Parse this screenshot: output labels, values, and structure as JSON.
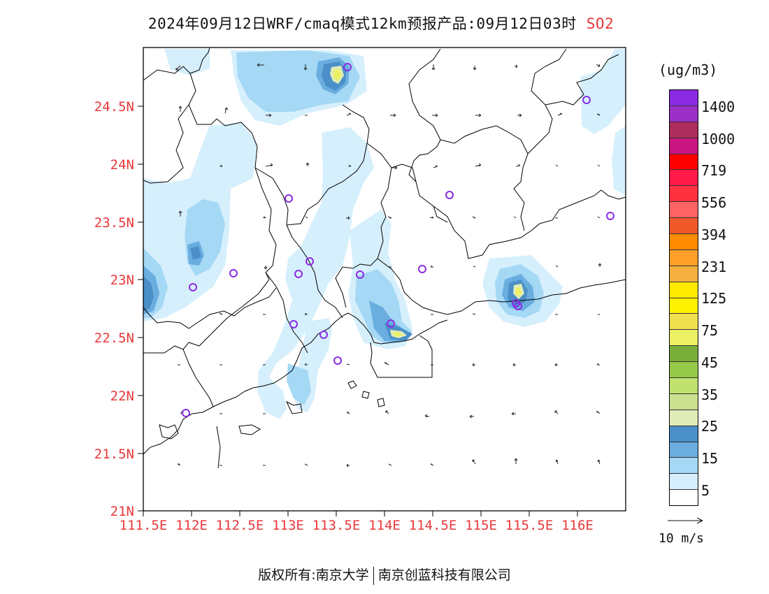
{
  "title": {
    "main": "2024年09月12日WRF/cmaq模式12km预报产品:09月12日03时",
    "variable": "SO2"
  },
  "map": {
    "x_ticks": [
      "111.5E",
      "112E",
      "112.5E",
      "113E",
      "113.5E",
      "114E",
      "114.5E",
      "115E",
      "115.5E",
      "116E"
    ],
    "y_ticks": [
      "21N",
      "21.5N",
      "22N",
      "22.5N",
      "23N",
      "23.5N",
      "24N",
      "24.5N"
    ],
    "station_marker_color": "#8a2be2",
    "tick_label_color": "#e8373a"
  },
  "legend": {
    "unit": "(ug/m3)",
    "colors": [
      "#8a2be2",
      "#9b30c8",
      "#ad2d5c",
      "#c9157f",
      "#ff0000",
      "#ff1a4a",
      "#ff3040",
      "#ff6464",
      "#f0582a",
      "#ff8c00",
      "#ffa02a",
      "#f5b040",
      "#ffea00",
      "#fff200",
      "#f0e050",
      "#ecf065",
      "#7aae3a",
      "#96c84a",
      "#c0e070",
      "#cce090",
      "#e0ecb8",
      "#4a8fc8",
      "#6aaee0",
      "#a4d8f5",
      "#d6effc",
      "#ffffff"
    ],
    "labels": [
      "1400",
      "1000",
      "719",
      "556",
      "394",
      "231",
      "125",
      "75",
      "45",
      "35",
      "25",
      "15",
      "5"
    ]
  },
  "wind_scale": {
    "label": "10 m/s"
  },
  "footer": {
    "left": "版权所有:南京大学",
    "right": "南京创蓝科技有限公司"
  }
}
